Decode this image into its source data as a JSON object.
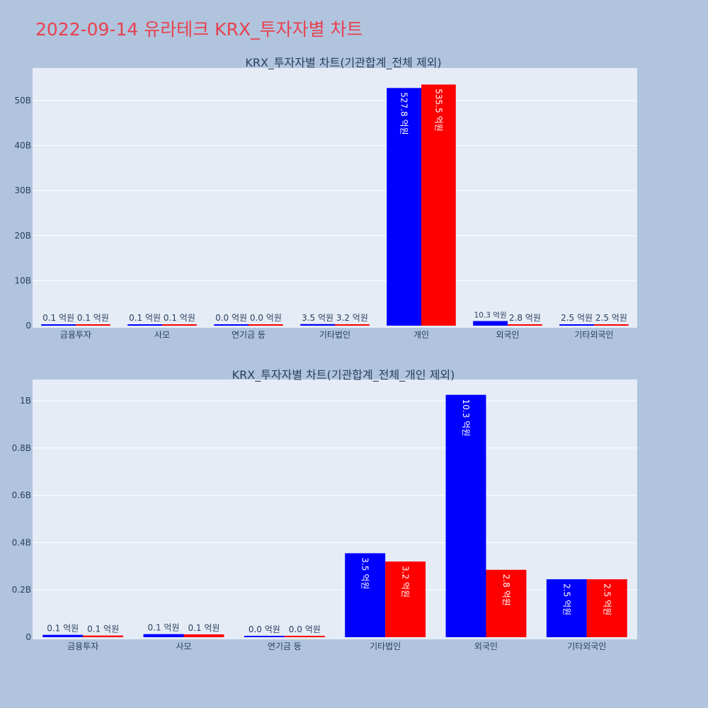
{
  "page": {
    "title": "2022-09-14 유라테크 KRX_투자자별 차트"
  },
  "colors": {
    "buy": "#0000ff",
    "sell": "#ff0000",
    "plot_background": "#e5ecf6",
    "page_background": "#b0c4de",
    "title": "#e8414e"
  },
  "chart_data": [
    {
      "type": "bar",
      "title": "KRX_투자자별 차트(기관합계_전체 제외)",
      "categories": [
        "금융투자",
        "사모",
        "연기금 등",
        "기타법인",
        "개인",
        "외국인",
        "기타외국인"
      ],
      "series": [
        {
          "color": "#0000ff",
          "values": [
            0.01,
            0.01,
            0.0,
            0.35,
            52.78,
            1.03,
            0.25
          ],
          "labels": [
            "0.1 억원",
            "0.1 억원",
            "0.0 억원",
            "3.5 억원",
            "527.8 억원",
            "10.3 억원",
            "2.5 억원"
          ]
        },
        {
          "color": "#ff0000",
          "values": [
            0.01,
            0.01,
            0.0,
            0.32,
            53.55,
            0.28,
            0.25
          ],
          "labels": [
            "0.1 억원",
            "0.1 억원",
            "0.0 억원",
            "3.2 억원",
            "535.5 억원",
            "2.8 억원",
            "2.5 억원"
          ]
        }
      ],
      "yticks": [
        0,
        10,
        20,
        30,
        40,
        50
      ],
      "ytick_labels": [
        "0",
        "10B",
        "20B",
        "30B",
        "40B",
        "50B"
      ],
      "ylim": [
        0,
        56.6
      ],
      "xlabel": "",
      "ylabel": "",
      "grid": true,
      "legend": "none"
    },
    {
      "type": "bar",
      "title": "KRX_투자자별 차트(기관합계_전체_개인 제외)",
      "categories": [
        "금융투자",
        "사모",
        "연기금 등",
        "기타법인",
        "외국인",
        "기타외국인"
      ],
      "series": [
        {
          "color": "#0000ff",
          "values": [
            0.01,
            0.013,
            0.0,
            0.355,
            1.025,
            0.245
          ],
          "labels": [
            "0.1 억원",
            "0.1 억원",
            "0.0 억원",
            "3.5 억원",
            "10.3 억원",
            "2.5 억원"
          ]
        },
        {
          "color": "#ff0000",
          "values": [
            0.007,
            0.012,
            0.0,
            0.32,
            0.285,
            0.245
          ],
          "labels": [
            "0.1 억원",
            "0.1 억원",
            "0.0 억원",
            "3.2 억원",
            "2.8 억원",
            "2.5 억원"
          ]
        }
      ],
      "yticks": [
        0,
        0.2,
        0.4,
        0.6,
        0.8,
        1.0
      ],
      "ytick_labels": [
        "0",
        "0.2B",
        "0.4B",
        "0.6B",
        "0.8B",
        "1B"
      ],
      "ylim": [
        0,
        1.0
      ],
      "xlabel": "",
      "ylabel": "",
      "grid": true,
      "legend": "none"
    }
  ]
}
